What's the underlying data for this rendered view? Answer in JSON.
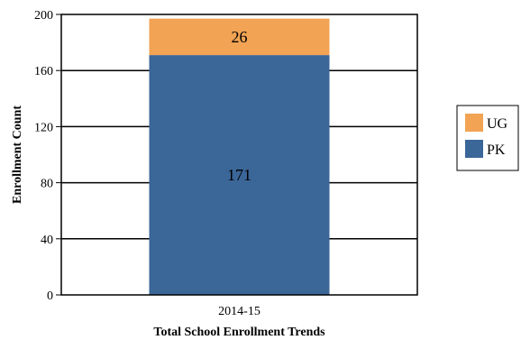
{
  "chart_data": {
    "type": "bar",
    "stacked": true,
    "categories": [
      "2014-15"
    ],
    "series": [
      {
        "name": "PK",
        "values": [
          171
        ],
        "color": "#3b6698"
      },
      {
        "name": "UG",
        "values": [
          26
        ],
        "color": "#f2a354"
      }
    ],
    "xlabel": "Total School Enrollment Trends",
    "ylabel": "Enrollment Count",
    "ylim": [
      0,
      200
    ],
    "yticks": [
      0,
      40,
      80,
      120,
      160,
      200
    ],
    "grid": true,
    "legend": "right",
    "legend_order": [
      "UG",
      "PK"
    ]
  }
}
